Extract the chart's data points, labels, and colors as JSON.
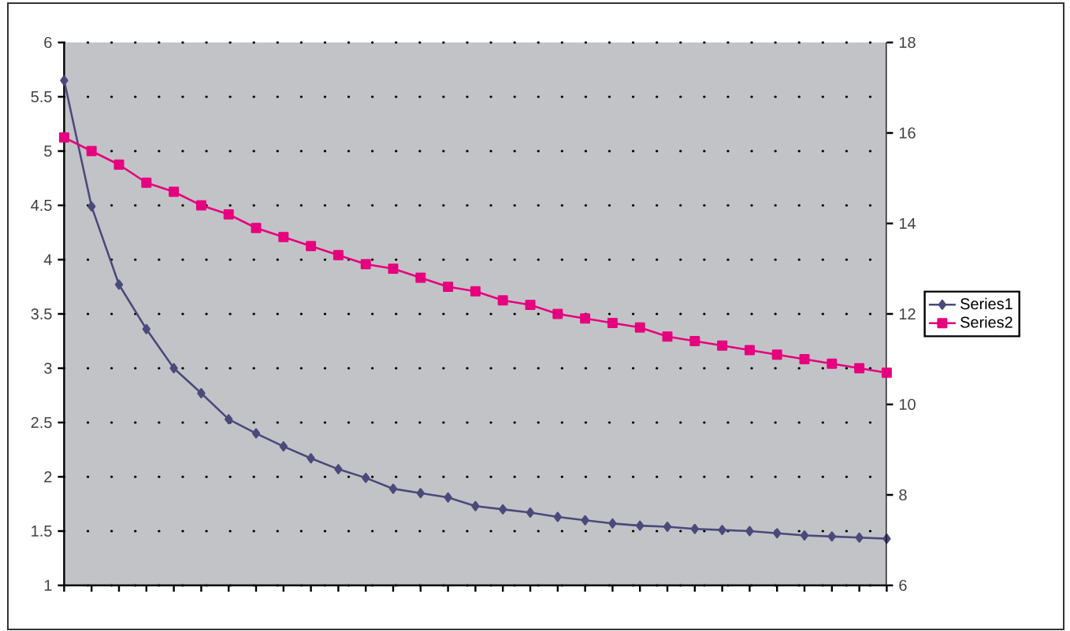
{
  "chart_data": {
    "type": "line",
    "categories": [
      null,
      null,
      null,
      null,
      null,
      null,
      null,
      null,
      null,
      null,
      null,
      null,
      null,
      null,
      null,
      null,
      null,
      null,
      null,
      null,
      null,
      null,
      null,
      null,
      null,
      null,
      null,
      null,
      null,
      null,
      null
    ],
    "series": [
      {
        "name": "Series1",
        "color": "#4b4a7a",
        "marker": "diamond",
        "values": [
          5.65,
          4.49,
          3.77,
          3.36,
          3.0,
          2.77,
          2.53,
          2.4,
          2.28,
          2.17,
          2.07,
          1.99,
          1.89,
          1.85,
          1.81,
          1.73,
          1.7,
          1.67,
          1.63,
          1.6,
          1.57,
          1.55,
          1.54,
          1.52,
          1.51,
          1.5,
          1.48,
          1.46,
          1.45,
          1.44,
          1.43
        ]
      },
      {
        "name": "Series2",
        "color": "#e6007e",
        "marker": "square",
        "axis": "y2",
        "values": [
          15.9,
          15.6,
          15.3,
          14.9,
          14.7,
          14.4,
          14.2,
          13.9,
          13.7,
          13.5,
          13.3,
          13.1,
          13.0,
          12.8,
          12.6,
          12.5,
          12.3,
          12.2,
          12.0,
          11.9,
          11.8,
          11.7,
          11.5,
          11.4,
          11.3,
          11.2,
          11.1,
          11.0,
          10.9,
          10.8,
          10.7
        ]
      }
    ],
    "ylim": [
      1,
      6
    ],
    "yticks": [
      1,
      1.5,
      2,
      2.5,
      3,
      3.5,
      4,
      4.5,
      5,
      5.5,
      6
    ],
    "y2lim": [
      6,
      18
    ],
    "y2ticks": [
      6,
      8,
      10,
      12,
      14,
      16,
      18
    ],
    "grid": "y",
    "legend": "right"
  }
}
